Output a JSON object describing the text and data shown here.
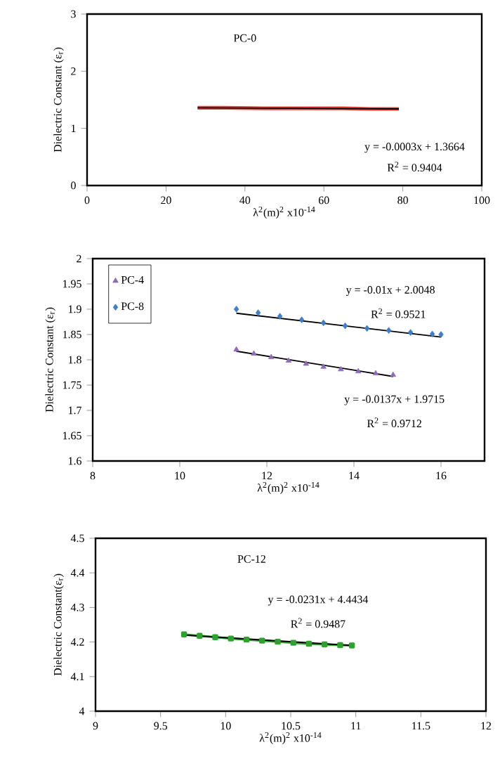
{
  "chart_data": [
    {
      "type": "line",
      "xlabel": "λ$^{2}$(m)$^{2}$  x10$^{-14}$",
      "ylabel": "Dielectric Constant  (ε$_{r}$)",
      "xlim": [
        0,
        100
      ],
      "ylim": [
        0,
        3
      ],
      "xticks": [
        0,
        20,
        40,
        60,
        80,
        100
      ],
      "yticks": [
        0,
        1,
        2,
        3
      ],
      "grid": false,
      "legend": false,
      "annotations": [
        "PC-0",
        "y = -0.0003x + 1.3664",
        "R$^{2}$ = 0.9404"
      ],
      "series": [
        {
          "color": "#e8413c",
          "x": [
            28,
            35,
            45,
            55,
            65,
            72,
            79
          ],
          "values": [
            1.36,
            1.36,
            1.35,
            1.35,
            1.35,
            1.34,
            1.34
          ]
        },
        {
          "color": "#000000",
          "x": [
            28,
            79
          ],
          "values": [
            1.36,
            1.34
          ]
        }
      ]
    },
    {
      "type": "scatter",
      "xlabel": "λ$^{2}$(m)$^{2}$  x10$^{-14}$",
      "ylabel": "Dielectric Constant (ε$_{r}$)",
      "xlim": [
        8,
        17
      ],
      "ylim": [
        1.6,
        2
      ],
      "xticks": [
        8,
        10,
        12,
        14,
        16
      ],
      "yticks": [
        1.6,
        1.65,
        1.7,
        1.75,
        1.8,
        1.85,
        1.9,
        1.95,
        2
      ],
      "grid": false,
      "legend": "top left",
      "annotations": [
        "y = -0.01x + 2.0048",
        "R$^{2}$ = 0.9521",
        "y = -0.0137x + 1.9715",
        "R$^{2}$ = 0.9712"
      ],
      "series": [
        {
          "type": "scatter",
          "name": "PC-4",
          "color": "#8e6bb8",
          "marker": "triangle",
          "x": [
            11.3,
            11.7,
            12.1,
            12.5,
            12.9,
            13.3,
            13.7,
            14.1,
            14.5,
            14.9
          ],
          "values": [
            1.82,
            1.812,
            1.805,
            1.798,
            1.792,
            1.786,
            1.781,
            1.777,
            1.773,
            1.77
          ]
        },
        {
          "type": "scatter",
          "name": "PC-8",
          "color": "#3d7fcc",
          "marker": "diamond",
          "x": [
            11.3,
            11.8,
            12.3,
            12.8,
            13.3,
            13.8,
            14.3,
            14.8,
            15.3,
            15.8,
            16.0
          ],
          "values": [
            1.9,
            1.893,
            1.886,
            1.879,
            1.873,
            1.867,
            1.862,
            1.858,
            1.854,
            1.851,
            1.85
          ]
        },
        {
          "type": "line",
          "color": "#000000",
          "x": [
            11.3,
            14.9
          ],
          "values": [
            1.817,
            1.767
          ]
        },
        {
          "type": "line",
          "color": "#000000",
          "x": [
            11.3,
            16.0
          ],
          "values": [
            1.892,
            1.845
          ]
        }
      ]
    },
    {
      "type": "line",
      "xlabel": "λ$^{2}$(m)$^{2}$  x10$^{-14}$",
      "ylabel": "Dielectric Constant(ε$_{r}$)",
      "xlim": [
        9,
        12
      ],
      "ylim": [
        4,
        4.5
      ],
      "xticks": [
        9,
        9.5,
        10,
        10.5,
        11,
        11.5,
        12
      ],
      "yticks": [
        4,
        4.1,
        4.2,
        4.3,
        4.4,
        4.5
      ],
      "grid": false,
      "legend": false,
      "annotations": [
        "PC-12",
        "y = -0.0231x + 4.4434",
        "R$^{2}$ = 0.9487"
      ],
      "series": [
        {
          "color": "#2ea12e",
          "marker": "square",
          "x": [
            9.68,
            9.8,
            9.92,
            10.04,
            10.16,
            10.28,
            10.4,
            10.52,
            10.64,
            10.76,
            10.88,
            10.97
          ],
          "values": [
            4.222,
            4.218,
            4.214,
            4.21,
            4.207,
            4.204,
            4.201,
            4.198,
            4.195,
            4.193,
            4.191,
            4.19
          ]
        },
        {
          "color": "#000000",
          "x": [
            9.68,
            10.97
          ],
          "values": [
            4.22,
            4.19
          ]
        }
      ]
    }
  ]
}
